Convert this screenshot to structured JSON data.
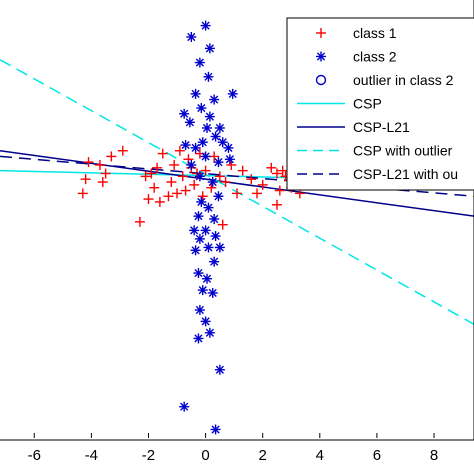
{
  "chart_data": {
    "type": "scatter",
    "xlim": [
      -7.2,
      9.4
    ],
    "ylim": [
      -4.6,
      3.1
    ],
    "x_ticks": [
      -6,
      -4,
      -2,
      0,
      2,
      4,
      6,
      8
    ],
    "x_tick_labels": [
      "-6",
      "-4",
      "-2",
      "0",
      "2",
      "4",
      "6",
      "8"
    ],
    "grid": false,
    "legend_position": "top-right",
    "colors": {
      "class1": "#ff0000",
      "class2": "#0000cc",
      "csp": "#00e5e5",
      "cspl21": "#00008b"
    },
    "series": [
      {
        "name": "class 1",
        "kind": "scatter",
        "marker": "plus",
        "color": "#ff0000",
        "points": [
          [
            -4.3,
            -0.3
          ],
          [
            -4.2,
            -0.05
          ],
          [
            -4.1,
            0.25
          ],
          [
            -3.7,
            0.2
          ],
          [
            -3.6,
            -0.1
          ],
          [
            -3.5,
            0.05
          ],
          [
            -3.3,
            0.35
          ],
          [
            -2.9,
            0.45
          ],
          [
            -2.3,
            -0.8
          ],
          [
            -2.1,
            0.0
          ],
          [
            -2.0,
            -0.4
          ],
          [
            -1.8,
            -0.2
          ],
          [
            -1.7,
            0.15
          ],
          [
            -1.6,
            -0.45
          ],
          [
            -1.5,
            0.4
          ],
          [
            -1.3,
            -0.35
          ],
          [
            -1.2,
            -0.1
          ],
          [
            -1.1,
            0.2
          ],
          [
            -1.0,
            -0.3
          ],
          [
            -0.9,
            0.45
          ],
          [
            -0.8,
            0.0
          ],
          [
            -0.7,
            -0.25
          ],
          [
            -0.6,
            0.3
          ],
          [
            -0.5,
            0.15
          ],
          [
            -0.4,
            -0.15
          ],
          [
            -0.3,
            0.05
          ],
          [
            -0.2,
            0.4
          ],
          [
            -0.1,
            -0.35
          ],
          [
            0.0,
            0.1
          ],
          [
            0.2,
            -0.2
          ],
          [
            0.3,
            0.35
          ],
          [
            0.5,
            0.0
          ],
          [
            0.7,
            -0.1
          ],
          [
            0.9,
            0.2
          ],
          [
            1.1,
            -0.3
          ],
          [
            1.3,
            0.1
          ],
          [
            1.6,
            -0.05
          ],
          [
            2.0,
            -0.15
          ],
          [
            2.3,
            0.15
          ],
          [
            2.5,
            0.05
          ],
          [
            2.6,
            -0.25
          ],
          [
            2.7,
            0.1
          ],
          [
            3.0,
            -0.2
          ],
          [
            3.2,
            -0.05
          ],
          [
            2.5,
            -0.5
          ],
          [
            0.6,
            -0.85
          ],
          [
            1.8,
            -0.3
          ],
          [
            -1.9,
            0.05
          ],
          [
            2.8,
            0.0
          ],
          [
            3.3,
            -0.3
          ]
        ]
      },
      {
        "name": "class 2",
        "kind": "scatter",
        "marker": "asterisk",
        "color": "#0000cc",
        "points": [
          [
            0.0,
            2.65
          ],
          [
            -0.5,
            2.45
          ],
          [
            0.15,
            2.25
          ],
          [
            -0.2,
            2.0
          ],
          [
            0.1,
            1.75
          ],
          [
            -0.35,
            1.45
          ],
          [
            0.3,
            1.35
          ],
          [
            -0.15,
            1.2
          ],
          [
            0.15,
            1.05
          ],
          [
            -0.75,
            1.1
          ],
          [
            -0.55,
            0.95
          ],
          [
            0.5,
            0.85
          ],
          [
            0.05,
            0.85
          ],
          [
            0.35,
            0.7
          ],
          [
            0.6,
            0.6
          ],
          [
            -0.35,
            0.5
          ],
          [
            -0.7,
            0.55
          ],
          [
            0.8,
            0.5
          ],
          [
            0.95,
            1.45
          ],
          [
            0.85,
            0.3
          ],
          [
            0.45,
            0.25
          ],
          [
            -0.5,
            0.2
          ],
          [
            0.0,
            0.35
          ],
          [
            -0.2,
            0.0
          ],
          [
            0.25,
            -0.1
          ],
          [
            -0.15,
            -0.45
          ],
          [
            0.1,
            -0.55
          ],
          [
            -0.25,
            -0.7
          ],
          [
            0.3,
            -0.75
          ],
          [
            0.0,
            -0.95
          ],
          [
            0.35,
            -1.05
          ],
          [
            -0.2,
            -1.1
          ],
          [
            -0.35,
            -1.3
          ],
          [
            0.1,
            -1.25
          ],
          [
            0.3,
            -1.5
          ],
          [
            -0.25,
            -1.7
          ],
          [
            0.05,
            -1.8
          ],
          [
            -0.1,
            -2.0
          ],
          [
            0.25,
            -2.05
          ],
          [
            -0.2,
            -2.35
          ],
          [
            0.0,
            -2.55
          ],
          [
            0.15,
            -2.75
          ],
          [
            -0.25,
            -2.85
          ],
          [
            0.5,
            -3.4
          ],
          [
            -0.75,
            -4.05
          ],
          [
            0.35,
            -4.45
          ],
          [
            0.5,
            -1.25
          ],
          [
            -0.4,
            -0.95
          ],
          [
            0.45,
            -0.35
          ],
          [
            -0.1,
            0.6
          ]
        ]
      },
      {
        "name": "outlier in class 2",
        "kind": "scatter",
        "marker": "circle",
        "color": "#0000cc",
        "points": []
      },
      {
        "name": "CSP",
        "kind": "line",
        "style": "solid",
        "color": "#00e5e5",
        "points": [
          [
            -7.2,
            0.1
          ],
          [
            9.4,
            -0.1
          ]
        ]
      },
      {
        "name": "CSP-L21",
        "kind": "line",
        "style": "solid",
        "color": "#00008b",
        "points": [
          [
            -7.2,
            0.45
          ],
          [
            9.4,
            -0.7
          ]
        ]
      },
      {
        "name": "CSP with outlier",
        "kind": "line",
        "style": "dashed",
        "color": "#00e5e5",
        "points": [
          [
            -7.2,
            2.05
          ],
          [
            9.4,
            -2.6
          ]
        ]
      },
      {
        "name": "CSP-L21 with ou",
        "kind": "line",
        "style": "dashed",
        "color": "#00008b",
        "points": [
          [
            -7.2,
            0.35
          ],
          [
            9.4,
            -0.35
          ]
        ]
      }
    ]
  }
}
